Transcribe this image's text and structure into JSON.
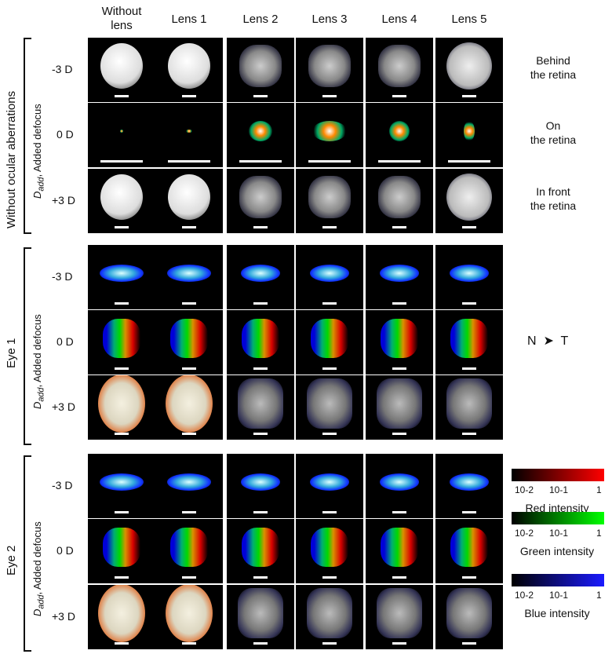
{
  "columns": [
    "Without lens",
    "Lens 1",
    "Lens 2",
    "Lens 3",
    "Lens 4",
    "Lens 5"
  ],
  "groups": [
    {
      "title": "Without ocular aberrations",
      "dadd_label": "D",
      "dadd_sub": "add",
      "dadd_suffix": ", Added defocus",
      "rows": [
        {
          "label": "-3 D",
          "side": [
            "Behind",
            "the retina"
          ]
        },
        {
          "label": "0 D",
          "side": [
            "On",
            "the retina"
          ]
        },
        {
          "label": "+3 D",
          "side": [
            "In front",
            "the retina"
          ]
        }
      ]
    },
    {
      "title": "Eye 1",
      "dadd_label": "D",
      "dadd_sub": "add",
      "dadd_suffix": ", Added defocus",
      "rows": [
        {
          "label": "-3 D"
        },
        {
          "label": "0 D"
        },
        {
          "label": "+3 D"
        }
      ]
    },
    {
      "title": "Eye 2",
      "dadd_label": "D",
      "dadd_sub": "add",
      "dadd_suffix": ", Added defocus",
      "rows": [
        {
          "label": "-3 D"
        },
        {
          "label": "0 D"
        },
        {
          "label": "+3 D"
        }
      ]
    }
  ],
  "orientation": {
    "left": "N",
    "right": "T"
  },
  "colorbars": [
    {
      "title": "Red intensity",
      "color": "#ff0000",
      "ticks": [
        "10-2",
        "10-1",
        "1"
      ]
    },
    {
      "title": "Green intensity",
      "color": "#00ff00",
      "ticks": [
        "10-2",
        "10-1",
        "1"
      ]
    },
    {
      "title": "Blue intensity",
      "color": "#1a1aff",
      "ticks": [
        "10-2",
        "10-1",
        "1"
      ]
    }
  ]
}
